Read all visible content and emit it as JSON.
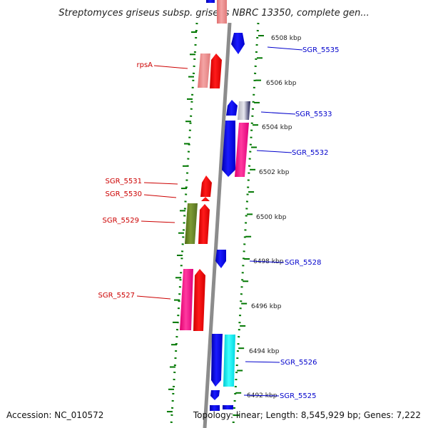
{
  "title": "Streptomyces griseus subsp. griseus NBRC 13350, complete gen...",
  "accession_label": "Accession: NC_010572",
  "topology_label": "Topology: linear; Length: 8,545,929 bp; Genes: 7,222",
  "colors": {
    "forward_label": "#0000cc",
    "reverse_label": "#cc0000",
    "tick": "#007700",
    "backbone": "#8c8c8c"
  },
  "kbp_marks": [
    "6508 kbp",
    "6506 kbp",
    "6504 kbp",
    "6502 kbp",
    "6500 kbp",
    "6498 kbp",
    "6496 kbp",
    "6494 kbp",
    "6492 kbp"
  ],
  "gene_labels": [
    {
      "text": "SGR_5535",
      "strand": "forward"
    },
    {
      "text": "rpsA",
      "strand": "reverse"
    },
    {
      "text": "SGR_5533",
      "strand": "forward"
    },
    {
      "text": "SGR_5532",
      "strand": "forward"
    },
    {
      "text": "SGR_5531",
      "strand": "reverse"
    },
    {
      "text": "SGR_5530",
      "strand": "reverse"
    },
    {
      "text": "SGR_5529",
      "strand": "reverse"
    },
    {
      "text": "SGR_5528",
      "strand": "forward"
    },
    {
      "text": "SGR_5527",
      "strand": "reverse"
    },
    {
      "text": "SGR_5526",
      "strand": "forward"
    },
    {
      "text": "SGR_5525",
      "strand": "forward"
    }
  ]
}
